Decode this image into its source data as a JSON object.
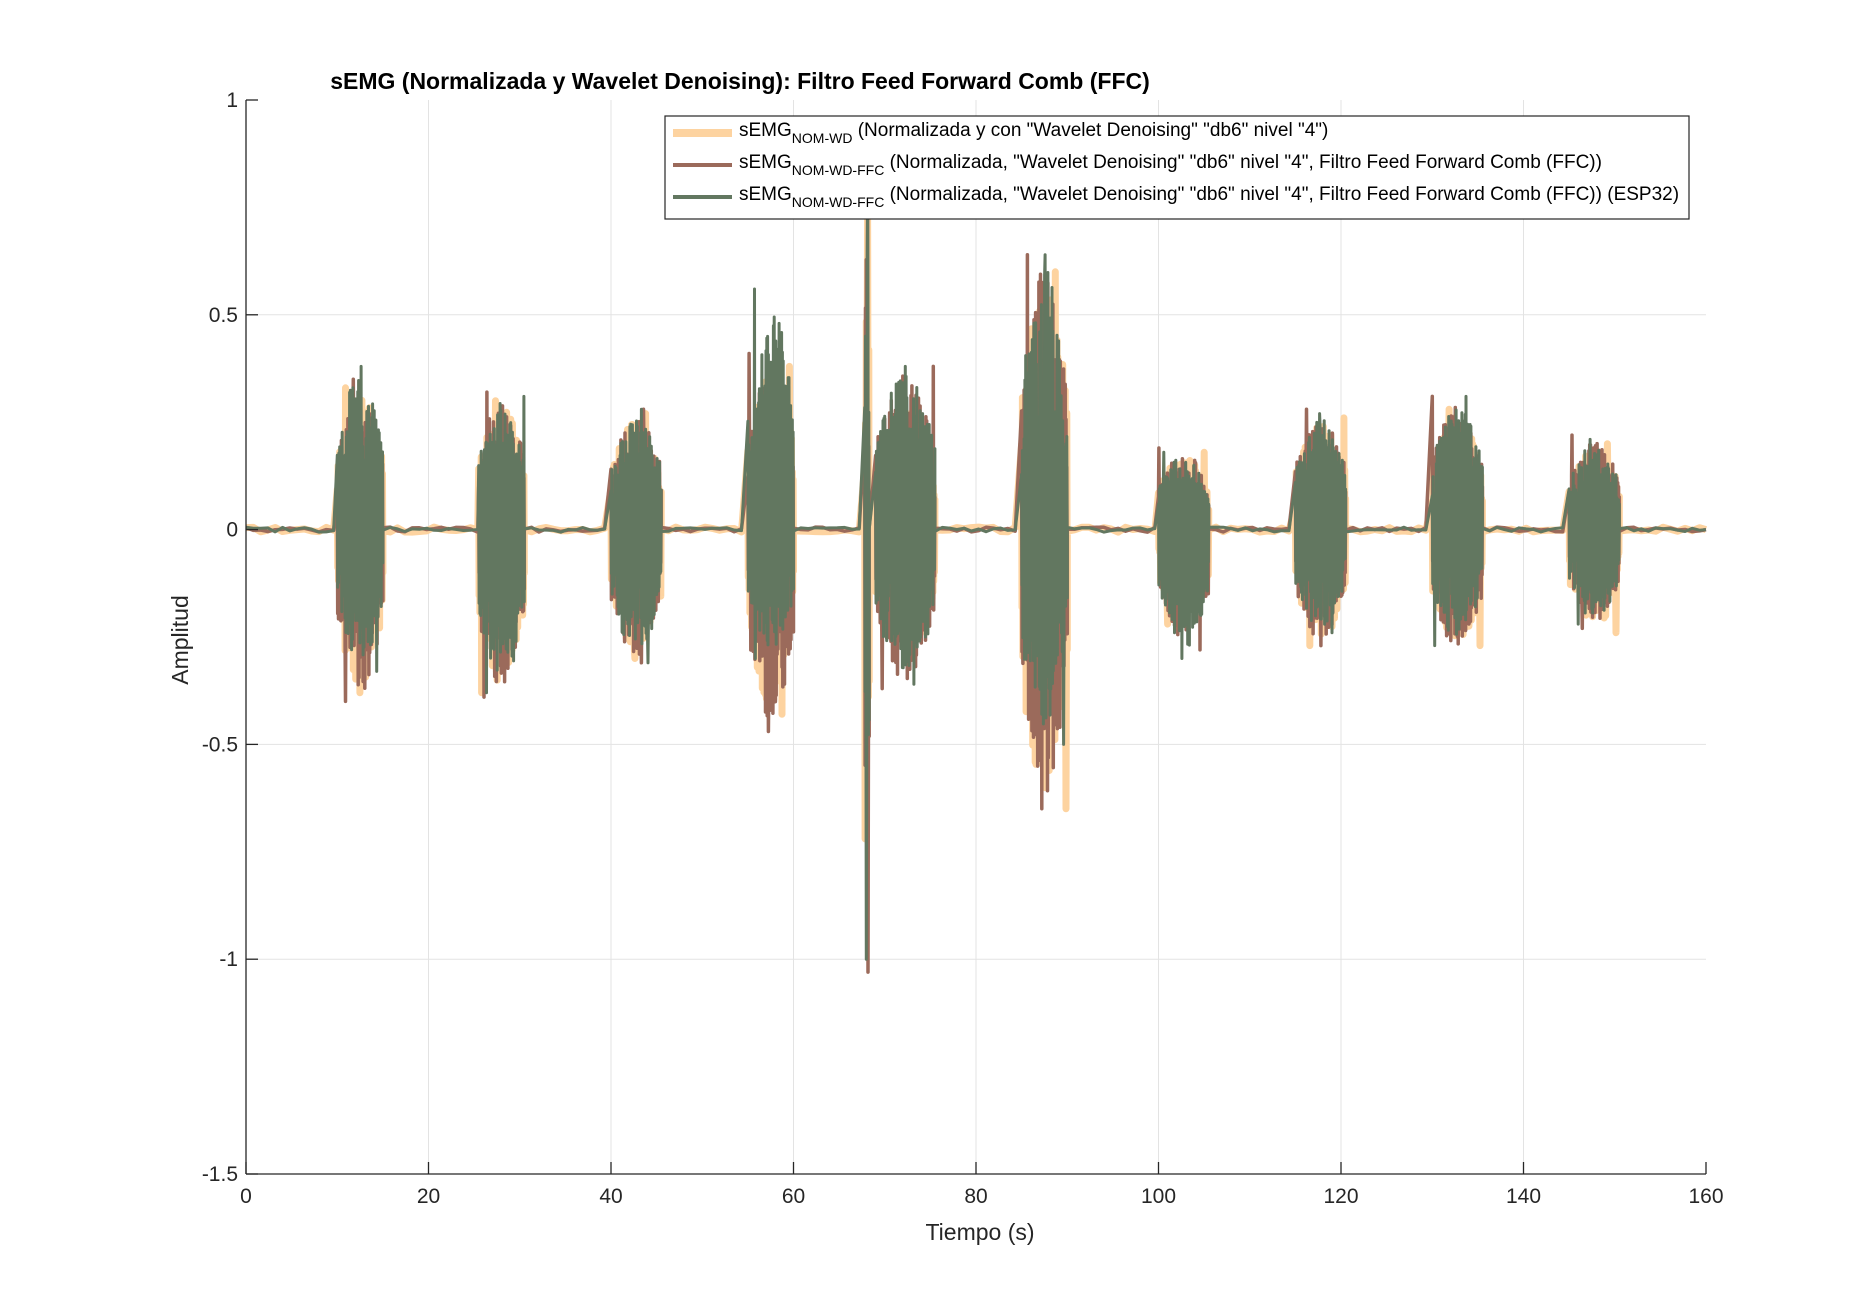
{
  "chart_data": {
    "type": "line",
    "title": "sEMG (Normalizada y Wavelet Denoising): Filtro Feed Forward Comb (FFC)",
    "xlabel": "Tiempo (s)",
    "ylabel": "Amplitud",
    "xlim": [
      0,
      160
    ],
    "ylim": [
      -1.5,
      1
    ],
    "xticks": [
      0,
      20,
      40,
      60,
      80,
      100,
      120,
      140,
      160
    ],
    "yticks": [
      -1.5,
      -1,
      -0.5,
      0,
      0.5,
      1
    ],
    "xtick_labels": [
      "0",
      "20",
      "40",
      "60",
      "80",
      "100",
      "120",
      "140",
      "160"
    ],
    "ytick_labels": [
      "-1.5",
      "-1",
      "-0.5",
      "0",
      "0.5",
      "1"
    ],
    "grid": true,
    "legend_position": "top-right",
    "series": [
      {
        "legend_main": "sEMG",
        "legend_sub": "NOM-WD",
        "legend_rest": " (Normalizada y con \"Wavelet Denoising\" \"db6\" nivel \"4\")",
        "color": "#fdd3a0",
        "bursts": [
          {
            "x": [
              10,
              15
            ],
            "max": 0.33,
            "min": -0.38
          },
          {
            "x": [
              25.5,
              30.5
            ],
            "max": 0.3,
            "min": -0.38
          },
          {
            "x": [
              40,
              45.5
            ],
            "max": 0.27,
            "min": -0.3
          },
          {
            "x": [
              55,
              60
            ],
            "max": 0.38,
            "min": -0.43
          },
          {
            "x": [
              67.8,
              68.3
            ],
            "max": 0.75,
            "min": -0.72
          },
          {
            "x": [
              69,
              75.5
            ],
            "max": 0.3,
            "min": -0.3
          },
          {
            "x": [
              85,
              90
            ],
            "max": 0.6,
            "min": -0.65
          },
          {
            "x": [
              100,
              105.5
            ],
            "max": 0.18,
            "min": -0.22
          },
          {
            "x": [
              115,
              120.5
            ],
            "max": 0.26,
            "min": -0.27
          },
          {
            "x": [
              130,
              135.5
            ],
            "max": 0.28,
            "min": -0.27
          },
          {
            "x": [
              145,
              150.5
            ],
            "max": 0.2,
            "min": -0.24
          }
        ]
      },
      {
        "legend_main": "sEMG",
        "legend_sub": "NOM-WD-FFC",
        "legend_rest": " (Normalizada, \"Wavelet Denoising\" \"db6\" nivel \"4\", Filtro Feed Forward Comb (FFC))",
        "color": "#9b6a5b",
        "bursts": [
          {
            "x": [
              10,
              15
            ],
            "max": 0.35,
            "min": -0.4
          },
          {
            "x": [
              25.5,
              30.5
            ],
            "max": 0.32,
            "min": -0.39
          },
          {
            "x": [
              40,
              45.5
            ],
            "max": 0.28,
            "min": -0.31
          },
          {
            "x": [
              55,
              60
            ],
            "max": 0.41,
            "min": -0.47
          },
          {
            "x": [
              67.8,
              68.3
            ],
            "max": 0.75,
            "min": -1.03
          },
          {
            "x": [
              69,
              75.5
            ],
            "max": 0.38,
            "min": -0.37
          },
          {
            "x": [
              85,
              90
            ],
            "max": 0.64,
            "min": -0.65
          },
          {
            "x": [
              100,
              105.5
            ],
            "max": 0.19,
            "min": -0.28
          },
          {
            "x": [
              115,
              120.5
            ],
            "max": 0.28,
            "min": -0.27
          },
          {
            "x": [
              130,
              135.5
            ],
            "max": 0.31,
            "min": -0.29
          },
          {
            "x": [
              145,
              150.5
            ],
            "max": 0.22,
            "min": -0.23
          }
        ]
      },
      {
        "legend_main": "sEMG",
        "legend_sub": "NOM-WD-FFC",
        "legend_rest": " (Normalizada, \"Wavelet Denoising\" \"db6\" nivel \"4\", Filtro Feed Forward Comb (FFC)) (ESP32)",
        "color": "#627760",
        "bursts": [
          {
            "x": [
              10,
              15
            ],
            "max": 0.38,
            "min": -0.33
          },
          {
            "x": [
              25.5,
              30.5
            ],
            "max": 0.31,
            "min": -0.38
          },
          {
            "x": [
              40,
              45.5
            ],
            "max": 0.28,
            "min": -0.31
          },
          {
            "x": [
              55,
              60
            ],
            "max": 0.56,
            "min": -0.3
          },
          {
            "x": [
              67.8,
              68.3
            ],
            "max": 0.75,
            "min": -1.0
          },
          {
            "x": [
              69,
              75.5
            ],
            "max": 0.38,
            "min": -0.36
          },
          {
            "x": [
              85,
              90
            ],
            "max": 0.64,
            "min": -0.5
          },
          {
            "x": [
              100,
              105.5
            ],
            "max": 0.18,
            "min": -0.3
          },
          {
            "x": [
              115,
              120.5
            ],
            "max": 0.27,
            "min": -0.24
          },
          {
            "x": [
              130,
              135.5
            ],
            "max": 0.31,
            "min": -0.27
          },
          {
            "x": [
              145,
              150.5
            ],
            "max": 0.21,
            "min": -0.22
          }
        ]
      }
    ]
  }
}
